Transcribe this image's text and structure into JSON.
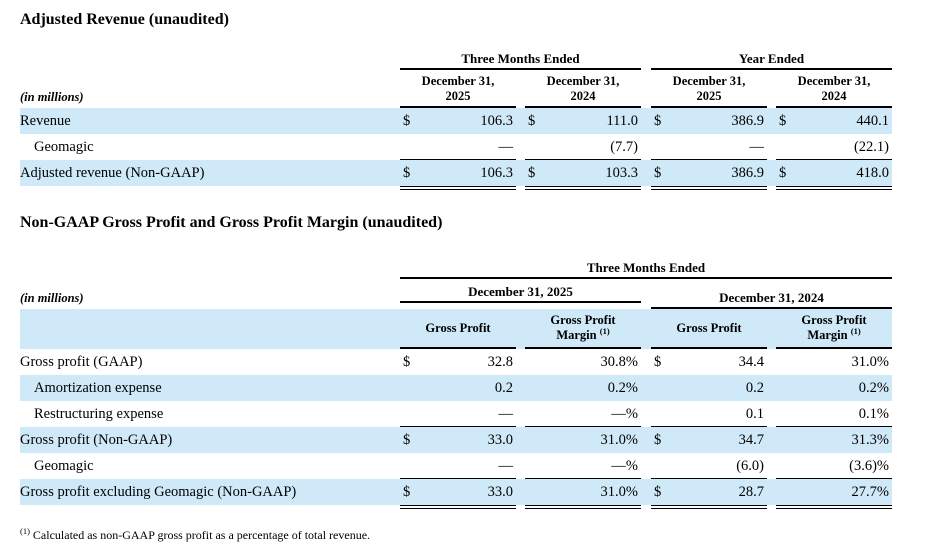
{
  "page": {
    "background": "#ffffff",
    "row_highlight_color": "#cfe9f8",
    "text_color": "#000000"
  },
  "section1": {
    "title": "Adjusted Revenue (unaudited)",
    "in_millions_label": "(in millions)",
    "group_headers": [
      {
        "label": "Three Months Ended"
      },
      {
        "label": "Year Ended"
      }
    ],
    "columns": [
      {
        "line1": "December 31,",
        "line2": "2025"
      },
      {
        "line1": "December 31,",
        "line2": "2024"
      },
      {
        "line1": "December 31,",
        "line2": "2025"
      },
      {
        "line1": "December 31,",
        "line2": "2024"
      }
    ],
    "rows": [
      {
        "label": "Revenue",
        "cells": [
          {
            "currency": "$",
            "value": "106.3"
          },
          {
            "currency": "$",
            "value": "111.0"
          },
          {
            "currency": "$",
            "value": "386.9"
          },
          {
            "currency": "$",
            "value": "440.1"
          }
        ]
      },
      {
        "label": "Geomagic",
        "cells": [
          {
            "currency": "",
            "value": "—"
          },
          {
            "currency": "",
            "value": "(7.7)"
          },
          {
            "currency": "",
            "value": "—"
          },
          {
            "currency": "",
            "value": "(22.1)"
          }
        ]
      },
      {
        "label": "Adjusted revenue (Non-GAAP)",
        "cells": [
          {
            "currency": "$",
            "value": "106.3"
          },
          {
            "currency": "$",
            "value": "103.3"
          },
          {
            "currency": "$",
            "value": "386.9"
          },
          {
            "currency": "$",
            "value": "418.0"
          }
        ]
      }
    ]
  },
  "section2": {
    "title": "Non-GAAP Gross Profit and Gross Profit Margin (unaudited)",
    "in_millions_label": "(in millions)",
    "group_header": "Three Months Ended",
    "period_headers": [
      {
        "label": "December 31, 2025"
      },
      {
        "label": "December 31, 2024"
      }
    ],
    "sub_columns": [
      {
        "label": "Gross Profit"
      },
      {
        "line1": "Gross Profit",
        "line2": "Margin",
        "footnote_ref": "(1)"
      },
      {
        "label": "Gross Profit"
      },
      {
        "line1": "Gross Profit",
        "line2": "Margin",
        "footnote_ref": "(1)"
      }
    ],
    "rows": [
      {
        "label": "Gross profit (GAAP)",
        "cells": [
          {
            "currency": "$",
            "value": "32.8"
          },
          {
            "currency": "",
            "value": "30.8%"
          },
          {
            "currency": "$",
            "value": "34.4"
          },
          {
            "currency": "",
            "value": "31.0%"
          }
        ]
      },
      {
        "label": "Amortization expense",
        "cells": [
          {
            "currency": "",
            "value": "0.2"
          },
          {
            "currency": "",
            "value": "0.2%"
          },
          {
            "currency": "",
            "value": "0.2"
          },
          {
            "currency": "",
            "value": "0.2%"
          }
        ]
      },
      {
        "label": "Restructuring expense",
        "cells": [
          {
            "currency": "",
            "value": "—"
          },
          {
            "currency": "",
            "value": "—%"
          },
          {
            "currency": "",
            "value": "0.1"
          },
          {
            "currency": "",
            "value": "0.1%"
          }
        ]
      },
      {
        "label": "Gross profit (Non-GAAP)",
        "cells": [
          {
            "currency": "$",
            "value": "33.0"
          },
          {
            "currency": "",
            "value": "31.0%"
          },
          {
            "currency": "$",
            "value": "34.7"
          },
          {
            "currency": "",
            "value": "31.3%"
          }
        ]
      },
      {
        "label": "Geomagic",
        "cells": [
          {
            "currency": "",
            "value": "—"
          },
          {
            "currency": "",
            "value": "—%"
          },
          {
            "currency": "",
            "value": "(6.0)"
          },
          {
            "currency": "",
            "value": "(3.6)%"
          }
        ]
      },
      {
        "label": "Gross profit excluding Geomagic (Non-GAAP)",
        "cells": [
          {
            "currency": "$",
            "value": "33.0"
          },
          {
            "currency": "",
            "value": "31.0%"
          },
          {
            "currency": "$",
            "value": "28.7"
          },
          {
            "currency": "",
            "value": "27.7%"
          }
        ]
      }
    ]
  },
  "footnote": {
    "ref": "(1)",
    "text": "Calculated as non-GAAP gross profit as a percentage of total revenue."
  }
}
